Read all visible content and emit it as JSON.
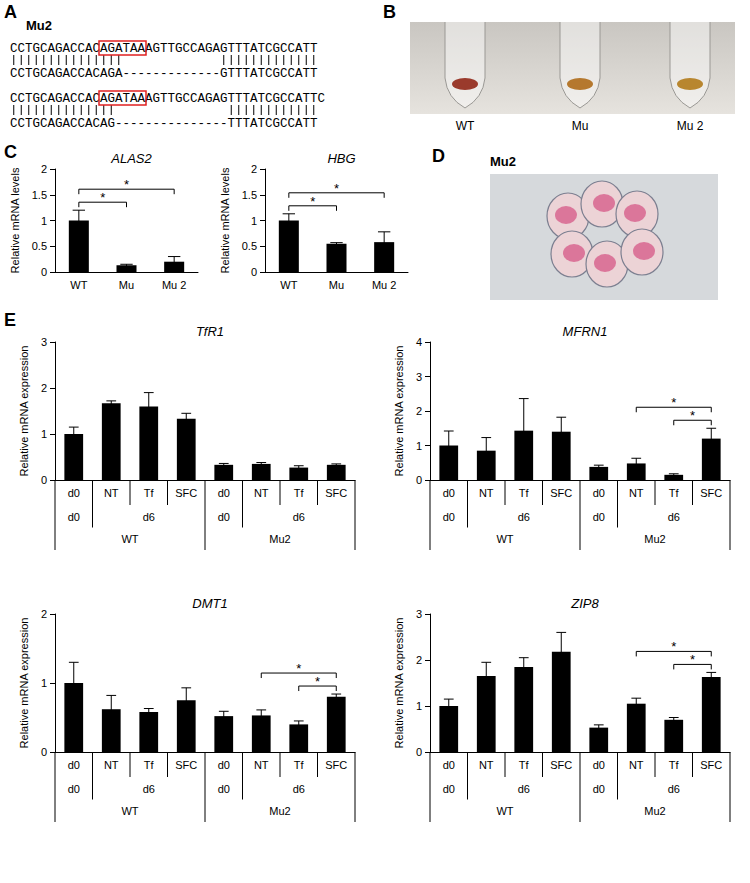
{
  "panel_A": {
    "label": "A",
    "title": "Mu2",
    "highlight": "AGATAA",
    "alignments": [
      {
        "reference": "CCTGCAGACCACAGATAAAGTTGCCAGAGTTTATCGCCATT",
        "mutant": "CCTGCAGACCACAGA-------------GTTTATCGCCATT"
      },
      {
        "reference": "CCTGCAGACCACAGATAAAGTTGCCAGAGTTTATCGCCATTC",
        "mutant": "CCTGCAGACCACAG---------------TTTATCGCCATT"
      }
    ]
  },
  "panel_B": {
    "label": "B",
    "samples": [
      "WT",
      "Mu",
      "Mu 2"
    ]
  },
  "panel_C": {
    "label": "C"
  },
  "panel_D": {
    "label": "D",
    "title": "Mu2"
  },
  "panel_E": {
    "label": "E"
  },
  "chart_data": [
    {
      "type": "bar",
      "title": "ALAS2",
      "y_label": "Relative mRNA levels",
      "categories": [
        "WT",
        "Mu",
        "Mu 2"
      ],
      "values": [
        1.0,
        0.13,
        0.2
      ],
      "errors": [
        0.2,
        0.02,
        0.1
      ],
      "color": "#000000",
      "ylim": [
        0,
        2
      ],
      "yticks": [
        0,
        0.5,
        1,
        1.5,
        2
      ],
      "grid": false,
      "significance": [
        {
          "from": 0,
          "to": 1,
          "label": "*"
        },
        {
          "from": 0,
          "to": 2,
          "label": "*"
        }
      ]
    },
    {
      "type": "bar",
      "title": "HBG",
      "y_label": "Relative mRNA levels",
      "categories": [
        "WT",
        "Mu",
        "Mu 2"
      ],
      "values": [
        1.0,
        0.55,
        0.58
      ],
      "errors": [
        0.13,
        0.02,
        0.2
      ],
      "color": "#000000",
      "ylim": [
        0,
        2
      ],
      "yticks": [
        0,
        0.5,
        1,
        1.5,
        2
      ],
      "grid": false,
      "significance": [
        {
          "from": 0,
          "to": 1,
          "label": "*"
        },
        {
          "from": 0,
          "to": 2,
          "label": "*"
        }
      ]
    },
    {
      "type": "bar",
      "title": "TfR1",
      "y_label": "Relative mRNA expression",
      "categories": [
        "d0",
        "NT",
        "Tf",
        "SFC",
        "d0",
        "NT",
        "Tf",
        "SFC"
      ],
      "x_groups": [
        [
          {
            "label": "d0",
            "from": 0,
            "to": 0
          },
          {
            "label": "d6",
            "from": 1,
            "to": 3
          },
          {
            "label": "d0",
            "from": 4,
            "to": 4
          },
          {
            "label": "d6",
            "from": 5,
            "to": 7
          }
        ],
        [
          {
            "label": "WT",
            "from": 0,
            "to": 3
          },
          {
            "label": "Mu2",
            "from": 4,
            "to": 7
          }
        ]
      ],
      "values": [
        1.0,
        1.67,
        1.6,
        1.33,
        0.33,
        0.35,
        0.27,
        0.33
      ],
      "errors": [
        0.15,
        0.05,
        0.3,
        0.12,
        0.03,
        0.03,
        0.04,
        0.02
      ],
      "color": "#000000",
      "ylim": [
        0,
        3
      ],
      "yticks": [
        0,
        1,
        2,
        3
      ],
      "grid": false,
      "significance": []
    },
    {
      "type": "bar",
      "title": "MFRN1",
      "y_label": "Relative mRNA expression",
      "categories": [
        "d0",
        "NT",
        "Tf",
        "SFC",
        "d0",
        "NT",
        "Tf",
        "SFC"
      ],
      "x_groups": [
        [
          {
            "label": "d0",
            "from": 0,
            "to": 0
          },
          {
            "label": "d6",
            "from": 1,
            "to": 3
          },
          {
            "label": "d0",
            "from": 4,
            "to": 4
          },
          {
            "label": "d6",
            "from": 5,
            "to": 7
          }
        ],
        [
          {
            "label": "WT",
            "from": 0,
            "to": 3
          },
          {
            "label": "Mu2",
            "from": 4,
            "to": 7
          }
        ]
      ],
      "values": [
        1.0,
        0.85,
        1.43,
        1.4,
        0.38,
        0.48,
        0.15,
        1.2
      ],
      "errors": [
        0.42,
        0.38,
        0.93,
        0.42,
        0.05,
        0.15,
        0.03,
        0.3
      ],
      "color": "#000000",
      "ylim": [
        0,
        4
      ],
      "yticks": [
        0,
        1,
        2,
        3,
        4
      ],
      "grid": false,
      "significance": [
        {
          "from": 5,
          "to": 7,
          "label": "*"
        },
        {
          "from": 6,
          "to": 7,
          "label": "*"
        }
      ]
    },
    {
      "type": "bar",
      "title": "DMT1",
      "y_label": "Relative mRNA expression",
      "categories": [
        "d0",
        "NT",
        "Tf",
        "SFC",
        "d0",
        "NT",
        "Tf",
        "SFC"
      ],
      "x_groups": [
        [
          {
            "label": "d0",
            "from": 0,
            "to": 0
          },
          {
            "label": "d6",
            "from": 1,
            "to": 3
          },
          {
            "label": "d0",
            "from": 4,
            "to": 4
          },
          {
            "label": "d6",
            "from": 5,
            "to": 7
          }
        ],
        [
          {
            "label": "WT",
            "from": 0,
            "to": 3
          },
          {
            "label": "Mu2",
            "from": 4,
            "to": 7
          }
        ]
      ],
      "values": [
        1.0,
        0.62,
        0.58,
        0.75,
        0.52,
        0.53,
        0.4,
        0.8
      ],
      "errors": [
        0.3,
        0.2,
        0.05,
        0.18,
        0.07,
        0.08,
        0.05,
        0.04
      ],
      "color": "#000000",
      "ylim": [
        0,
        2
      ],
      "yticks": [
        0,
        1,
        2
      ],
      "grid": false,
      "significance": [
        {
          "from": 5,
          "to": 7,
          "label": "*"
        },
        {
          "from": 6,
          "to": 7,
          "label": "*"
        }
      ]
    },
    {
      "type": "bar",
      "title": "ZIP8",
      "y_label": "Relative mRNA expression",
      "categories": [
        "d0",
        "NT",
        "Tf",
        "SFC",
        "d0",
        "NT",
        "Tf",
        "SFC"
      ],
      "x_groups": [
        [
          {
            "label": "d0",
            "from": 0,
            "to": 0
          },
          {
            "label": "d6",
            "from": 1,
            "to": 3
          },
          {
            "label": "d0",
            "from": 4,
            "to": 4
          },
          {
            "label": "d6",
            "from": 5,
            "to": 7
          }
        ],
        [
          {
            "label": "WT",
            "from": 0,
            "to": 3
          },
          {
            "label": "Mu2",
            "from": 4,
            "to": 7
          }
        ]
      ],
      "values": [
        1.0,
        1.65,
        1.85,
        2.18,
        0.53,
        1.05,
        0.7,
        1.63
      ],
      "errors": [
        0.15,
        0.3,
        0.2,
        0.42,
        0.06,
        0.12,
        0.05,
        0.1
      ],
      "color": "#000000",
      "ylim": [
        0,
        3
      ],
      "yticks": [
        0,
        1,
        2,
        3
      ],
      "grid": false,
      "significance": [
        {
          "from": 5,
          "to": 7,
          "label": "*"
        },
        {
          "from": 6,
          "to": 7,
          "label": "*"
        }
      ]
    }
  ]
}
